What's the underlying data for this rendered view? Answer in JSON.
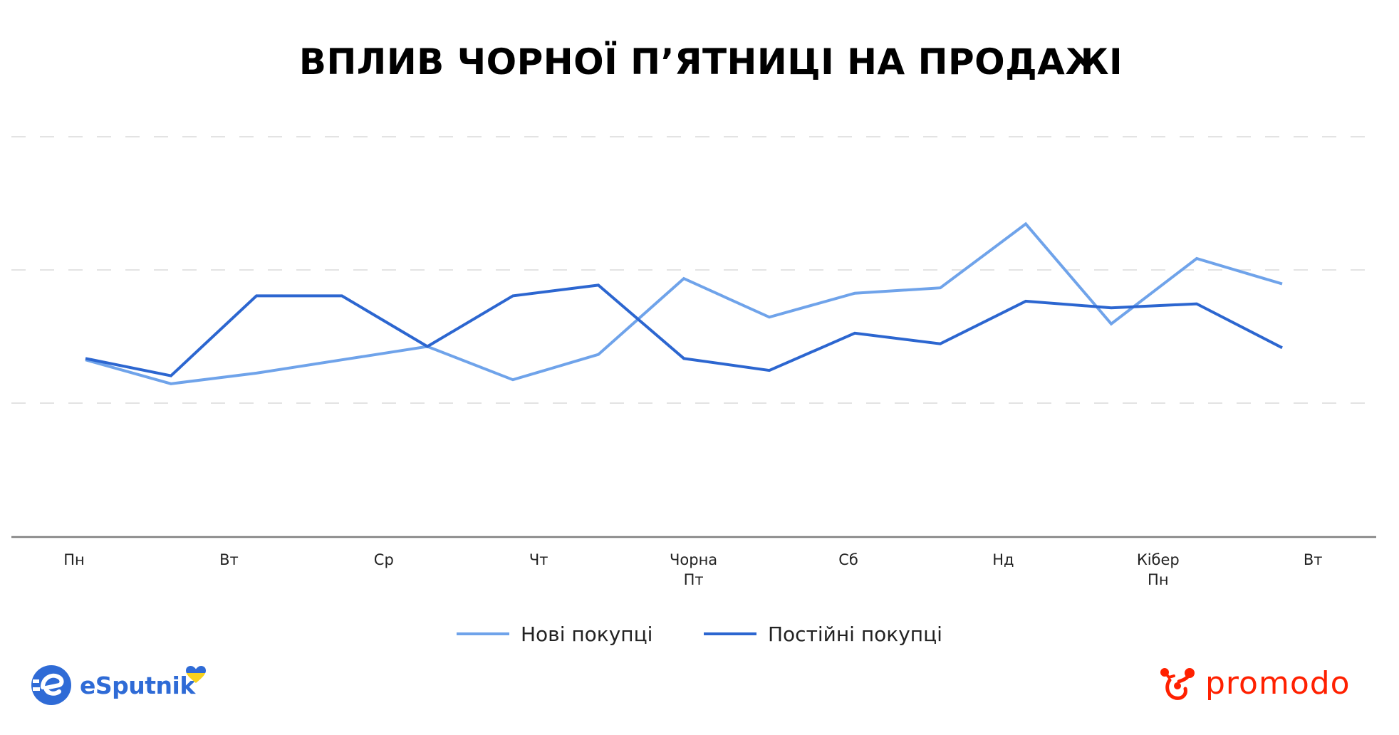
{
  "title": "ВПЛИВ ЧОРНОЇ П’ЯТНИЦІ НА ПРОДАЖІ",
  "colors": {
    "new_customers": "#6fa3ea",
    "returning_customers": "#2c66d0",
    "gridline": "#e3e3e3",
    "axis": "#808080",
    "esputnik_blue": "#2f6bd6",
    "promodo_red": "#ff2000"
  },
  "chart_data": {
    "type": "line",
    "title": "ВПЛИВ ЧОРНОЇ П’ЯТНИЦІ НА ПРОДАЖІ",
    "xlabel": "",
    "ylabel": "",
    "categories": [
      "Пн",
      "Вт",
      "Ср",
      "Чт",
      "Чорна\nПт",
      "Сб",
      "Нд",
      "Кібер\nПн",
      "Вт"
    ],
    "ylim": [
      0,
      3
    ],
    "y_ticks_visible": false,
    "grid": "dashed horizontal",
    "legend_position": "bottom",
    "points_per_series": 15,
    "series": [
      {
        "name": "Нові покупці",
        "color": "#6fa3ea",
        "values": [
          1.32,
          1.14,
          1.22,
          1.32,
          1.42,
          1.17,
          1.36,
          1.93,
          1.64,
          1.82,
          1.86,
          2.34,
          1.59,
          2.08,
          1.89
        ]
      },
      {
        "name": "Постійні покупці",
        "color": "#2c66d0",
        "values": [
          1.33,
          1.2,
          1.8,
          1.8,
          1.42,
          1.8,
          1.88,
          1.33,
          1.24,
          1.52,
          1.44,
          1.76,
          1.71,
          1.74,
          1.41
        ]
      }
    ]
  },
  "axis": {
    "x_labels": [
      "Пн",
      "Вт",
      "Ср",
      "Чт",
      "Чорна\nПт",
      "Сб",
      "Нд",
      "Кібер\nПн",
      "Вт"
    ]
  },
  "legend": {
    "items": [
      {
        "label": "Нові покупці",
        "color": "#6fa3ea"
      },
      {
        "label": "Постійні покупці",
        "color": "#2c66d0"
      }
    ]
  },
  "logos": {
    "left": {
      "text": "eSputnik",
      "icon": "esputnik-e-icon",
      "badge": "ukraine-heart-icon"
    },
    "right": {
      "text": "promodo",
      "icon": "promodo-molecule-icon"
    }
  }
}
